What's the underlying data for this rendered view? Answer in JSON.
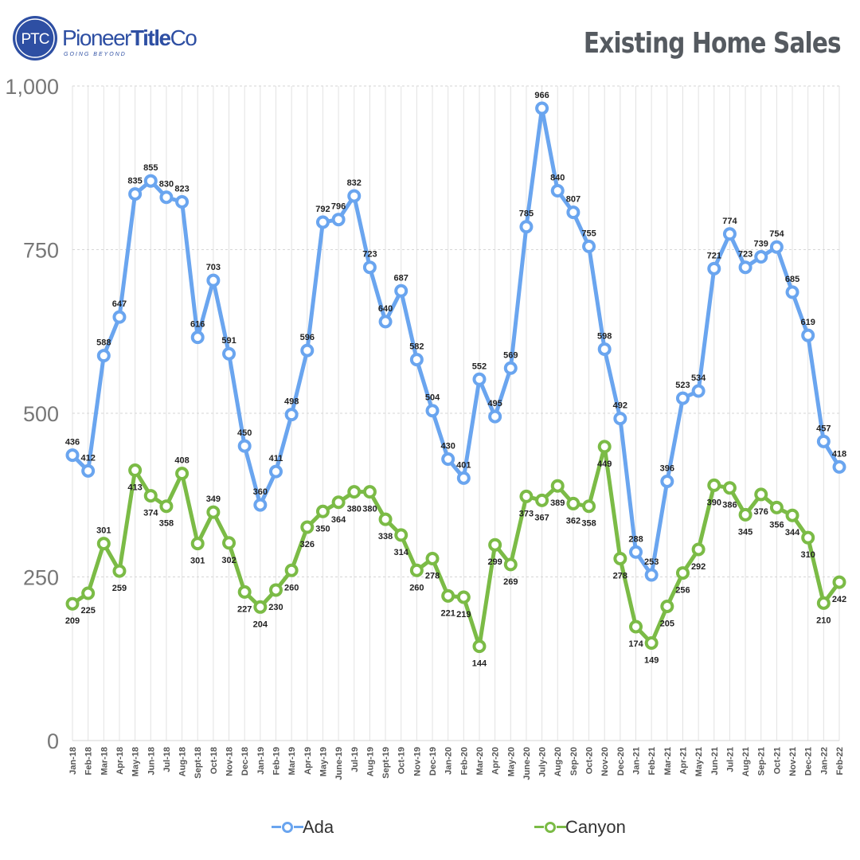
{
  "header": {
    "title": "Existing Home Sales",
    "logo_badge": "PTC",
    "logo_name_regular": "Pioneer",
    "logo_name_bold": "Title",
    "logo_name_suffix": "Co",
    "logo_tagline": "GOING BEYOND"
  },
  "colors": {
    "ada": "#6aa5ef",
    "canyon": "#7bbb46",
    "logo_blue": "#2e4fa3",
    "title_gray": "#555a60"
  },
  "chart_data": {
    "type": "line",
    "title": "Existing Home Sales",
    "xlabel": "",
    "ylabel": "",
    "ylim": [
      0,
      1000
    ],
    "yticks": [
      "0",
      "250",
      "500",
      "750",
      "1,000"
    ],
    "grid": true,
    "legend_position": "bottom",
    "categories": [
      "Jan-18",
      "Feb-18",
      "Mar-18",
      "Apr-18",
      "May-18",
      "Jun-18",
      "Jul-18",
      "Aug-18",
      "Sept-18",
      "Oct-18",
      "Nov-18",
      "Dec-18",
      "Jan-19",
      "Feb-19",
      "Mar-19",
      "Apr-19",
      "May-19",
      "June-19",
      "Jul-19",
      "Aug-19",
      "Sept-19",
      "Oct-19",
      "Nov-19",
      "Dec-19",
      "Jan-20",
      "Feb-20",
      "Mar-20",
      "Apr-20",
      "May-20",
      "June-20",
      "July-20",
      "Aug-20",
      "Sep-20",
      "Oct-20",
      "Nov-20",
      "Dec-20",
      "Jan-21",
      "Feb-21",
      "Mar-21",
      "Apr-21",
      "May-21",
      "Jun-21",
      "Jul-21",
      "Aug-21",
      "Sep-21",
      "Oct-21",
      "Nov-21",
      "Dec-21",
      "Jan-22",
      "Feb-22"
    ],
    "series": [
      {
        "name": "Ada",
        "values": [
          436,
          412,
          588,
          647,
          835,
          855,
          830,
          823,
          616,
          703,
          591,
          450,
          360,
          411,
          498,
          596,
          792,
          796,
          832,
          723,
          640,
          687,
          582,
          504,
          430,
          401,
          552,
          495,
          569,
          785,
          966,
          840,
          807,
          755,
          598,
          492,
          288,
          253,
          396,
          523,
          534,
          721,
          774,
          723,
          739,
          754,
          685,
          619,
          457,
          418
        ],
        "label_below": [
          false,
          false,
          false,
          false,
          false,
          false,
          false,
          false,
          false,
          false,
          false,
          false,
          false,
          false,
          false,
          false,
          false,
          false,
          false,
          false,
          false,
          false,
          false,
          false,
          false,
          false,
          false,
          false,
          false,
          false,
          false,
          false,
          false,
          false,
          false,
          false,
          false,
          false,
          false,
          false,
          false,
          false,
          false,
          false,
          false,
          false,
          false,
          false,
          false,
          false
        ]
      },
      {
        "name": "Canyon",
        "values": [
          209,
          225,
          301,
          259,
          413,
          374,
          358,
          408,
          301,
          349,
          302,
          227,
          204,
          230,
          260,
          326,
          350,
          364,
          380,
          380,
          338,
          314,
          260,
          278,
          221,
          219,
          144,
          299,
          269,
          373,
          367,
          389,
          362,
          358,
          449,
          278,
          174,
          149,
          205,
          256,
          292,
          390,
          386,
          345,
          376,
          356,
          344,
          310,
          210,
          242
        ],
        "label_below": [
          true,
          true,
          false,
          true,
          true,
          true,
          true,
          false,
          true,
          false,
          true,
          true,
          true,
          true,
          true,
          true,
          true,
          true,
          true,
          true,
          true,
          true,
          true,
          true,
          true,
          true,
          true,
          true,
          true,
          true,
          true,
          true,
          true,
          true,
          true,
          true,
          true,
          true,
          true,
          true,
          true,
          true,
          true,
          true,
          true,
          true,
          true,
          true,
          true,
          true
        ]
      }
    ]
  }
}
